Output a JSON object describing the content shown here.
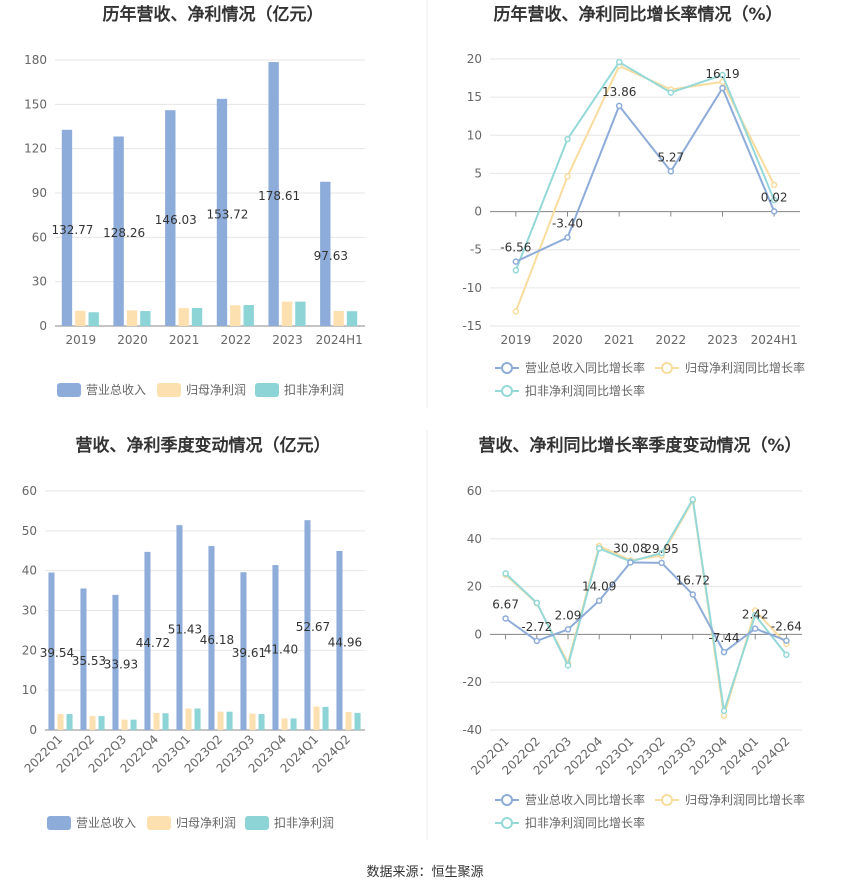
{
  "source": "数据来源：恒生聚源",
  "colors": {
    "rev": "#8eacd9",
    "np": "#fde0b0",
    "dnp": "#8dd4d6",
    "rev_line": "#8eacd9",
    "np_line": "#f9dc9e",
    "dnp_line": "#95d8d8"
  },
  "chart_data": [
    {
      "type": "bar",
      "title": "历年营收、净利情况（亿元）",
      "categories": [
        "2019",
        "2020",
        "2021",
        "2022",
        "2023",
        "2024H1"
      ],
      "ylim": [
        0,
        180
      ],
      "yticks": [
        "0",
        "30",
        "60",
        "90",
        "120",
        "150",
        "180"
      ],
      "series": [
        {
          "name": "营业总收入",
          "values": [
            132.77,
            128.26,
            146.03,
            153.72,
            178.61,
            97.63
          ],
          "labels": [
            "132.77",
            "128.26",
            "146.03",
            "153.72",
            "178.61",
            "97.63"
          ]
        },
        {
          "name": "归母净利润",
          "values": [
            10.3,
            10.6,
            12.1,
            14.0,
            16.5,
            10.2
          ]
        },
        {
          "name": "扣非净利润",
          "values": [
            9.3,
            10.1,
            12.2,
            14.2,
            16.5,
            10.0
          ]
        }
      ],
      "legend": "bottom"
    },
    {
      "type": "line",
      "title": "历年营收、净利同比增长率情况（%）",
      "categories": [
        "2019",
        "2020",
        "2021",
        "2022",
        "2023",
        "2024H1"
      ],
      "ylim": [
        -15,
        20
      ],
      "yticks": [
        "-15",
        "-10",
        "-5",
        "0",
        "5",
        "10",
        "15",
        "20"
      ],
      "series": [
        {
          "name": "营业总收入同比增长率",
          "values": [
            -6.56,
            -3.4,
            13.86,
            5.27,
            16.19,
            0.02
          ],
          "labels": [
            "-6.56",
            "-3.40",
            "13.86",
            "5.27",
            "16.19",
            "0.02"
          ]
        },
        {
          "name": "归母净利润同比增长率",
          "values": [
            -13.1,
            4.6,
            19.1,
            16.0,
            17.0,
            3.5
          ]
        },
        {
          "name": "扣非净利润同比增长率",
          "values": [
            -7.7,
            9.5,
            19.6,
            15.6,
            17.9,
            1.5
          ]
        }
      ],
      "legend": "bottom"
    },
    {
      "type": "bar",
      "title": "营收、净利季度变动情况（亿元）",
      "categories": [
        "2022Q1",
        "2022Q2",
        "2022Q3",
        "2022Q4",
        "2023Q1",
        "2023Q2",
        "2023Q3",
        "2023Q4",
        "2024Q1",
        "2024Q2"
      ],
      "ylim": [
        0,
        60
      ],
      "yticks": [
        "0",
        "10",
        "20",
        "30",
        "40",
        "50",
        "60"
      ],
      "series": [
        {
          "name": "营业总收入",
          "values": [
            39.54,
            35.53,
            33.93,
            44.72,
            51.43,
            46.18,
            39.61,
            41.4,
            52.67,
            44.96
          ],
          "labels": [
            "39.54",
            "35.53",
            "33.93",
            "44.72",
            "51.43",
            "46.18",
            "39.61",
            "41.40",
            "52.67",
            "44.96"
          ]
        },
        {
          "name": "归母净利润",
          "values": [
            4.0,
            3.5,
            2.6,
            4.3,
            5.4,
            4.6,
            4.1,
            2.9,
            5.9,
            4.5
          ]
        },
        {
          "name": "扣非净利润",
          "values": [
            4.0,
            3.5,
            2.6,
            4.2,
            5.4,
            4.6,
            4.0,
            2.9,
            5.8,
            4.3
          ]
        }
      ],
      "legend": "bottom"
    },
    {
      "type": "line",
      "title": "营收、净利同比增长率季度变动情况（%）",
      "categories": [
        "2022Q1",
        "2022Q2",
        "2022Q3",
        "2022Q4",
        "2023Q1",
        "2023Q2",
        "2023Q3",
        "2023Q4",
        "2024Q1",
        "2024Q2"
      ],
      "ylim": [
        -40,
        60
      ],
      "yticks": [
        "-40",
        "-20",
        "0",
        "20",
        "40",
        "60"
      ],
      "series": [
        {
          "name": "营业总收入同比增长率",
          "values": [
            6.67,
            -2.72,
            2.09,
            14.09,
            30.08,
            29.95,
            16.72,
            -7.44,
            2.42,
            -2.64
          ],
          "labels": [
            "6.67",
            "-2.72",
            "2.09",
            "14.09",
            "30.08",
            "29.95",
            "16.72",
            "-7.44",
            "2.42",
            "-2.64"
          ]
        },
        {
          "name": "归母净利润同比增长率",
          "values": [
            25.0,
            13.0,
            -12.0,
            37.0,
            31.0,
            33.0,
            56.0,
            -34.0,
            10.0,
            -4.0
          ]
        },
        {
          "name": "扣非净利润同比增长率",
          "values": [
            25.5,
            13.2,
            -13.0,
            36.0,
            30.5,
            34.0,
            56.5,
            -32.0,
            8.0,
            -8.5
          ]
        }
      ],
      "legend": "bottom"
    }
  ]
}
